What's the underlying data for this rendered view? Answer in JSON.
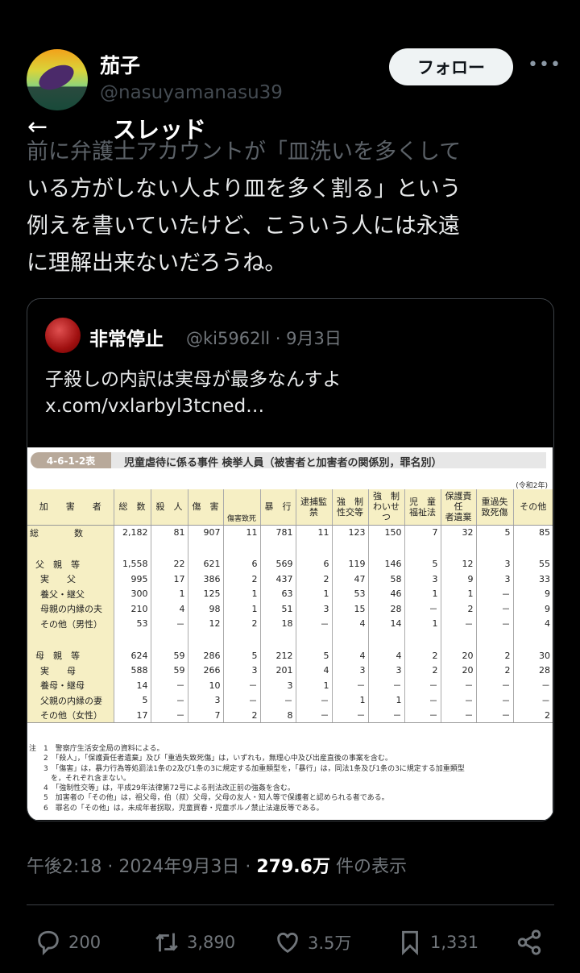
{
  "author": {
    "name": "茄子",
    "handle": "@nasuyamanasu39",
    "follow_label": "フォロー",
    "more": "•••"
  },
  "header": {
    "back": "←",
    "title": "スレッド"
  },
  "tweet": {
    "text_first": "前に弁護士アカウントが「皿洗いを多くして",
    "text_rest": "いる方がしない人より皿を多く割る」という\n例えを書いていたけど、こういう人には永遠\nに理解出来ないだろうね。"
  },
  "quote": {
    "name": "非常停止",
    "handle": "@ki5962ll · 9月3日",
    "text": "子殺しの内訳は実母が最多なんすよ",
    "link": "x.com/vxlarbyl3tcned…"
  },
  "image": {
    "table_no": "4-6-1-2表",
    "title": "児童虐待に係る事件 検挙人員（被害者と加害者の関係別，罪名別）",
    "era": "(令和2年)",
    "headers": [
      "加　　害　　者",
      "総　数",
      "殺　人",
      "傷　害",
      "傷害致死",
      "暴　行",
      "逮捕監禁",
      "強　制\n性交等",
      "強　制\nわいせつ",
      "児　童\n福祉法",
      "保護責任\n者遺棄",
      "重過失\n致死傷",
      "その他"
    ],
    "rows": [
      [
        "総　　　　数",
        "2,182",
        "81",
        "907",
        "11",
        "781",
        "11",
        "123",
        "150",
        "7",
        "32",
        "5",
        "85"
      ],
      [
        "父　親　等",
        "1,558",
        "22",
        "621",
        "6",
        "569",
        "6",
        "119",
        "146",
        "5",
        "12",
        "3",
        "55"
      ],
      [
        "実　　父",
        "995",
        "17",
        "386",
        "2",
        "437",
        "2",
        "47",
        "58",
        "3",
        "9",
        "3",
        "33"
      ],
      [
        "養父・継父",
        "300",
        "1",
        "125",
        "1",
        "63",
        "1",
        "53",
        "46",
        "1",
        "1",
        "－",
        "9"
      ],
      [
        "母親の内縁の夫",
        "210",
        "4",
        "98",
        "1",
        "51",
        "3",
        "15",
        "28",
        "－",
        "2",
        "－",
        "9"
      ],
      [
        "その他（男性）",
        "53",
        "－",
        "12",
        "2",
        "18",
        "－",
        "4",
        "14",
        "1",
        "－",
        "－",
        "4"
      ],
      [
        "母　親　等",
        "624",
        "59",
        "286",
        "5",
        "212",
        "5",
        "4",
        "4",
        "2",
        "20",
        "2",
        "30"
      ],
      [
        "実　　母",
        "588",
        "59",
        "266",
        "3",
        "201",
        "4",
        "3",
        "3",
        "2",
        "20",
        "2",
        "28"
      ],
      [
        "養母・継母",
        "14",
        "－",
        "10",
        "－",
        "3",
        "1",
        "－",
        "－",
        "－",
        "－",
        "－",
        "－"
      ],
      [
        "父親の内縁の妻",
        "5",
        "－",
        "3",
        "－",
        "－",
        "－",
        "1",
        "1",
        "－",
        "－",
        "－",
        "－"
      ],
      [
        "その他（女性）",
        "17",
        "－",
        "7",
        "2",
        "8",
        "－",
        "－",
        "－",
        "－",
        "－",
        "－",
        "2"
      ]
    ],
    "notes": "注　1　警察庁生活安全局の資料による。\n　　2　「殺人」，「保護責任者遺棄」及び「重過失致死傷」は，いずれも，無理心中及び出産直後の事案を含む。\n　　3　「傷害」は，暴力行為等処罰法1条の2及び1条の3に規定する加重類型を，「暴行」は，同法1条及び1条の3に規定する加重類型\n　　　を，それぞれ含まない。\n　　4　「強制性交等」は，平成29年法律第72号による刑法改正前の強姦を含む。\n　　5　加害者の「その他」は，祖父母，伯（叔）父母，父母の友人・知人等で保護者と認められる者である。\n　　6　罪名の「その他」は，未成年者拐取，児童買春・児童ポルノ禁止法違反等である。"
  },
  "meta": {
    "time": "午後2:18 · 2024年9月3日 · ",
    "views": "279.6万",
    "views_label": " 件の表示"
  },
  "actions": {
    "replies": "200",
    "reposts": "3,890",
    "likes": "3.5万",
    "bookmarks": "1,331"
  }
}
